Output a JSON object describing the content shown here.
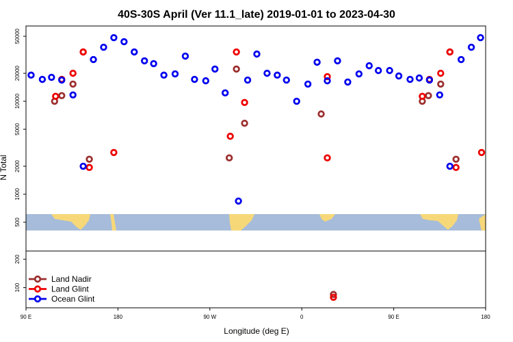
{
  "chart_data": [
    {
      "type": "scatter",
      "title": "40S-30S April (Ver 11.1_late)   2019-01-01 to 2023-04-30",
      "ylabel": "N Total",
      "log_y": true,
      "xlim": [
        90,
        540
      ],
      "ylim": [
        245,
        64500
      ],
      "yticks": [
        500,
        1000,
        2000,
        5000,
        10000,
        20000,
        50000
      ],
      "series": [
        {
          "color": "#9c2f2f",
          "x": [
            118,
            125,
            136,
            146,
            152,
            289,
            296,
            304,
            379,
            478,
            484,
            496,
            505,
            511
          ],
          "values": [
            10000,
            11500,
            15300,
            33900,
            2380,
            2460,
            22200,
            5800,
            7300,
            10000,
            11500,
            15300,
            33900,
            2380
          ]
        },
        {
          "color": "#ee0000",
          "x": [
            119,
            125,
            136,
            146,
            152,
            176,
            290,
            296,
            304,
            385,
            385,
            478,
            485,
            496,
            505,
            511,
            536
          ],
          "values": [
            11300,
            17200,
            20000,
            33900,
            1940,
            2810,
            4200,
            33900,
            9700,
            2460,
            18400,
            11300,
            17200,
            20000,
            33900,
            1940,
            2810
          ]
        },
        {
          "color": "#0000ee",
          "x": [
            95,
            106,
            115,
            125,
            136,
            146,
            156,
            166,
            176,
            186,
            196,
            206,
            215,
            225,
            236,
            246,
            255,
            266,
            275,
            285,
            298,
            307,
            316,
            326,
            336,
            345,
            355,
            366,
            375,
            385,
            395,
            405,
            416,
            426,
            435,
            446,
            455,
            466,
            475,
            485,
            495,
            505,
            516,
            526,
            535
          ],
          "values": [
            19100,
            17200,
            18100,
            16900,
            11700,
            2000,
            28100,
            38100,
            48300,
            43700,
            33900,
            27200,
            25400,
            19100,
            19700,
            30600,
            17200,
            16600,
            22200,
            12300,
            845,
            16900,
            32200,
            20000,
            19100,
            16900,
            10000,
            15300,
            26300,
            16600,
            27200,
            16100,
            19700,
            24100,
            21400,
            21400,
            18700,
            17200,
            17800,
            16900,
            11700,
            2000,
            28100,
            38100,
            48300
          ]
        }
      ]
    },
    {
      "type": "scatter",
      "xlabel": "Longitude (deg E)",
      "xlim": [
        90,
        540
      ],
      "ylim": [
        29,
        229
      ],
      "xticks": [
        {
          "value": 90,
          "label": "90 E"
        },
        180,
        {
          "value": 270,
          "label": "90 W"
        },
        {
          "value": 360,
          "label": "0"
        },
        {
          "value": 450,
          "label": "90 E"
        },
        {
          "value": 540,
          "label": "180"
        }
      ],
      "yticks": [
        100,
        200
      ],
      "legend": "lower left",
      "series": [
        {
          "name": "Land Nadir",
          "color": "#9c2f2f",
          "x": [
            391
          ],
          "values": [
            76
          ]
        },
        {
          "name": "Land Glint",
          "color": "#ee0000",
          "x": [
            391
          ],
          "values": [
            66
          ]
        },
        {
          "name": "Ocean Glint",
          "color": "#0000ee",
          "x": [],
          "values": []
        }
      ]
    }
  ]
}
